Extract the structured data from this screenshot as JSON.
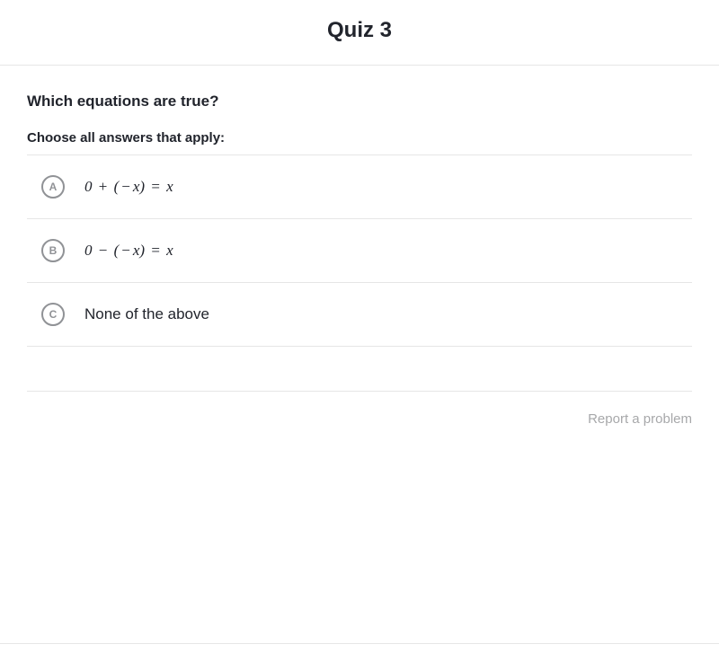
{
  "header": {
    "title": "Quiz 3"
  },
  "question": {
    "prompt": "Which equations are true?",
    "instruction": "Choose all answers that apply:"
  },
  "options": [
    {
      "letter": "A",
      "math_html": "0 <span class=\"math-op\">+</span> (<span class=\"math-op\">−</span>x) <span class=\"math-op\">=</span> x",
      "is_math": true
    },
    {
      "letter": "B",
      "math_html": "0 <span class=\"math-op\">−</span> (<span class=\"math-op\">−</span>x) <span class=\"math-op\">=</span> x",
      "is_math": true
    },
    {
      "letter": "C",
      "text": "None of the above",
      "is_math": false
    }
  ],
  "footer": {
    "report": "Report a problem"
  }
}
